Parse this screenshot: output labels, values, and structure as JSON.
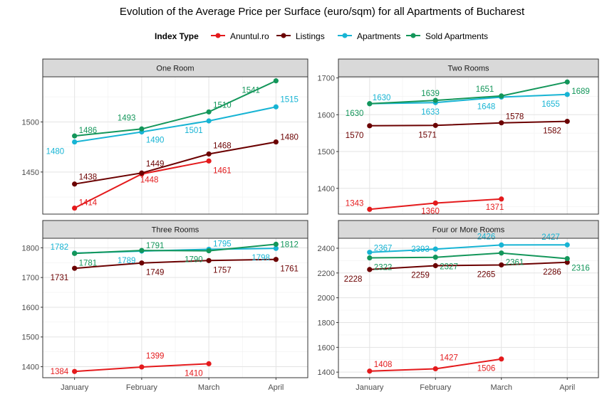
{
  "chart_data": {
    "type": "line",
    "title": "Evolution of the Average Price per Surface (euro/sqm) for all Apartments of Bucharest",
    "legend": {
      "title": "Index Type",
      "position": "top",
      "entries": [
        {
          "name": "Anuntul.ro",
          "color": "#e41a1c"
        },
        {
          "name": "Listings",
          "color": "#6b0000"
        },
        {
          "name": "Apartments",
          "color": "#17b4d4"
        },
        {
          "name": "Sold Apartments",
          "color": "#13965a"
        }
      ]
    },
    "categories": [
      "January",
      "February",
      "March",
      "April"
    ],
    "grid": true,
    "panels": [
      {
        "title": "One Room",
        "ylim": [
          1408,
          1545
        ],
        "yticks": [
          1450,
          1500
        ],
        "series": [
          {
            "name": "Anuntul.ro",
            "values": [
              1414,
              1448,
              1461,
              null
            ]
          },
          {
            "name": "Listings",
            "values": [
              1438,
              1449,
              1468,
              1480
            ]
          },
          {
            "name": "Apartments",
            "values": [
              1480,
              1490,
              1501,
              1515
            ]
          },
          {
            "name": "Sold Apartments",
            "values": [
              1486,
              1493,
              1510,
              1541
            ]
          }
        ]
      },
      {
        "title": "Two Rooms",
        "ylim": [
          1330,
          1703
        ],
        "yticks": [
          1400,
          1500,
          1600,
          1700
        ],
        "series": [
          {
            "name": "Anuntul.ro",
            "values": [
              1343,
              1360,
              1371,
              null
            ]
          },
          {
            "name": "Listings",
            "values": [
              1570,
              1571,
              1578,
              1582
            ]
          },
          {
            "name": "Apartments",
            "values": [
              1630,
              1633,
              1648,
              1655
            ]
          },
          {
            "name": "Sold Apartments",
            "values": [
              1630,
              1639,
              1651,
              1689
            ]
          }
        ]
      },
      {
        "title": "Three Rooms",
        "ylim": [
          1363,
          1832
        ],
        "yticks": [
          1400,
          1500,
          1600,
          1700,
          1800
        ],
        "series": [
          {
            "name": "Anuntul.ro",
            "values": [
              1384,
              1399,
              1410,
              null
            ]
          },
          {
            "name": "Listings",
            "values": [
              1731,
              1749,
              1757,
              1761
            ]
          },
          {
            "name": "Apartments",
            "values": [
              1782,
              1789,
              1795,
              1798
            ]
          },
          {
            "name": "Sold Apartments",
            "values": [
              1781,
              1791,
              1790,
              1812
            ]
          }
        ]
      },
      {
        "title": "Four or More Rooms",
        "ylim": [
          1355,
          2480
        ],
        "yticks": [
          1400,
          1600,
          1800,
          2000,
          2200,
          2400
        ],
        "series": [
          {
            "name": "Anuntul.ro",
            "values": [
              1408,
              1427,
              1506,
              null
            ]
          },
          {
            "name": "Listings",
            "values": [
              2228,
              2259,
              2265,
              2286
            ]
          },
          {
            "name": "Apartments",
            "values": [
              2367,
              2393,
              2426,
              2427
            ]
          },
          {
            "name": "Sold Apartments",
            "values": [
              2322,
              2327,
              2361,
              2316
            ]
          }
        ]
      }
    ]
  }
}
